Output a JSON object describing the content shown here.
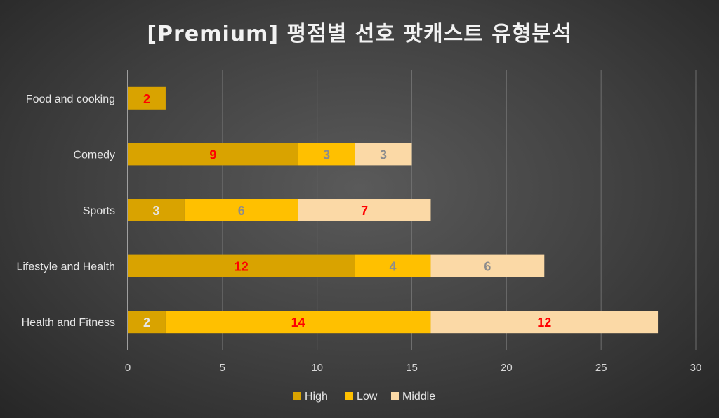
{
  "chart_data": {
    "type": "bar",
    "orientation": "horizontal",
    "stacked": true,
    "title": "[Premium] 평점별 선호 팟캐스트 유형분석",
    "categories": [
      "Food and cooking",
      "Comedy",
      "Sports",
      "Lifestyle and Health",
      "Health and Fitness"
    ],
    "series": [
      {
        "name": "High",
        "values": [
          2,
          9,
          3,
          12,
          2
        ],
        "color": "#d9a300",
        "label_colors": [
          "#ff0000",
          "#ff0000",
          "#e6e6e6",
          "#ff0000",
          "#e6e6e6"
        ]
      },
      {
        "name": "Low",
        "values": [
          0,
          3,
          6,
          4,
          14
        ],
        "color": "#ffc000",
        "label_colors": [
          "#ff0000",
          "#8c8c8c",
          "#8c8c8c",
          "#8c8c8c",
          "#ff0000"
        ]
      },
      {
        "name": "Middle",
        "values": [
          0,
          3,
          7,
          6,
          12
        ],
        "color": "#fbd9a6",
        "label_colors": [
          "#ff0000",
          "#8c8c8c",
          "#ff0000",
          "#8c8c8c",
          "#ff0000"
        ]
      }
    ],
    "xlim": [
      0,
      30
    ],
    "xticks": [
      0,
      5,
      10,
      15,
      20,
      25,
      30
    ],
    "grid": true,
    "legend_position": "bottom"
  }
}
